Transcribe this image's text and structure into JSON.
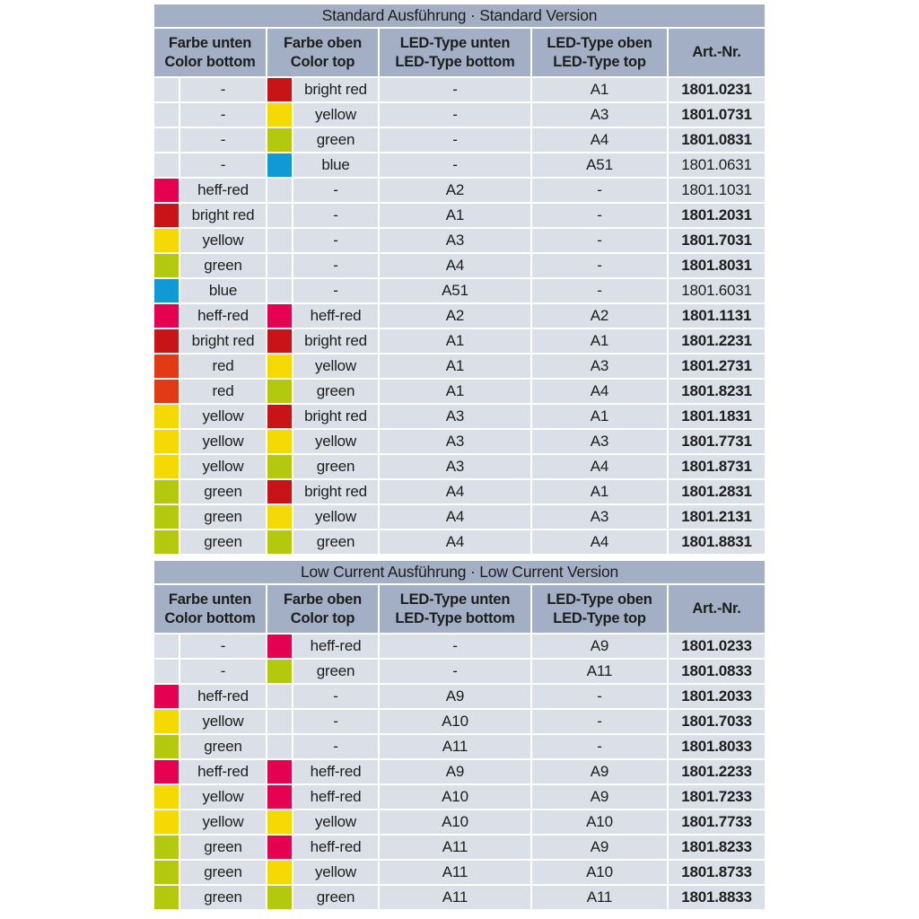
{
  "colors": {
    "header_bg": "#a3afc5",
    "row_bg": "#dbe0e8",
    "text": "#1d1d1b",
    "swatch": {
      "heff-red": "#e60050",
      "bright red": "#c81416",
      "red": "#e13a14",
      "yellow": "#f5d905",
      "green": "#b2c90d",
      "blue": "#0f9ad5"
    }
  },
  "columns": [
    {
      "de": "Farbe unten",
      "en": "Color bottom"
    },
    {
      "de": "Farbe oben",
      "en": "Color top"
    },
    {
      "de": "LED-Type unten",
      "en": "LED-Type bottom"
    },
    {
      "de": "LED-Type oben",
      "en": "LED-Type top"
    },
    {
      "de": "Art.-Nr."
    }
  ],
  "sections": [
    {
      "title": "Standard Ausführung · Standard Version",
      "rows": [
        {
          "color_bottom": "-",
          "color_top": "bright red",
          "led_bottom": "-",
          "led_top": "A1",
          "art_nr": "1801.0231",
          "bold": true
        },
        {
          "color_bottom": "-",
          "color_top": "yellow",
          "led_bottom": "-",
          "led_top": "A3",
          "art_nr": "1801.0731",
          "bold": true
        },
        {
          "color_bottom": "-",
          "color_top": "green",
          "led_bottom": "-",
          "led_top": "A4",
          "art_nr": "1801.0831",
          "bold": true
        },
        {
          "color_bottom": "-",
          "color_top": "blue",
          "led_bottom": "-",
          "led_top": "A51",
          "art_nr": "1801.0631",
          "bold": false
        },
        {
          "color_bottom": "heff-red",
          "color_top": "-",
          "led_bottom": "A2",
          "led_top": "-",
          "art_nr": "1801.1031",
          "bold": false
        },
        {
          "color_bottom": "bright red",
          "color_top": "-",
          "led_bottom": "A1",
          "led_top": "-",
          "art_nr": "1801.2031",
          "bold": true
        },
        {
          "color_bottom": "yellow",
          "color_top": "-",
          "led_bottom": "A3",
          "led_top": "-",
          "art_nr": "1801.7031",
          "bold": true
        },
        {
          "color_bottom": "green",
          "color_top": "-",
          "led_bottom": "A4",
          "led_top": "-",
          "art_nr": "1801.8031",
          "bold": true
        },
        {
          "color_bottom": "blue",
          "color_top": "-",
          "led_bottom": "A51",
          "led_top": "-",
          "art_nr": "1801.6031",
          "bold": false
        },
        {
          "color_bottom": "heff-red",
          "color_top": "heff-red",
          "led_bottom": "A2",
          "led_top": "A2",
          "art_nr": "1801.1131",
          "bold": true
        },
        {
          "color_bottom": "bright red",
          "color_top": "bright red",
          "led_bottom": "A1",
          "led_top": "A1",
          "art_nr": "1801.2231",
          "bold": true
        },
        {
          "color_bottom": "red",
          "color_top": "yellow",
          "led_bottom": "A1",
          "led_top": "A3",
          "art_nr": "1801.2731",
          "bold": true
        },
        {
          "color_bottom": "red",
          "color_top": "green",
          "led_bottom": "A1",
          "led_top": "A4",
          "art_nr": "1801.8231",
          "bold": true
        },
        {
          "color_bottom": "yellow",
          "color_top": "bright red",
          "led_bottom": "A3",
          "led_top": "A1",
          "art_nr": "1801.1831",
          "bold": true
        },
        {
          "color_bottom": "yellow",
          "color_top": "yellow",
          "led_bottom": "A3",
          "led_top": "A3",
          "art_nr": "1801.7731",
          "bold": true
        },
        {
          "color_bottom": "yellow",
          "color_top": "green",
          "led_bottom": "A3",
          "led_top": "A4",
          "art_nr": "1801.8731",
          "bold": true
        },
        {
          "color_bottom": "green",
          "color_top": "bright red",
          "led_bottom": "A4",
          "led_top": "A1",
          "art_nr": "1801.2831",
          "bold": true
        },
        {
          "color_bottom": "green",
          "color_top": "yellow",
          "led_bottom": "A4",
          "led_top": "A3",
          "art_nr": "1801.2131",
          "bold": true
        },
        {
          "color_bottom": "green",
          "color_top": "green",
          "led_bottom": "A4",
          "led_top": "A4",
          "art_nr": "1801.8831",
          "bold": true
        }
      ]
    },
    {
      "title": "Low Current Ausführung · Low Current Version",
      "rows": [
        {
          "color_bottom": "-",
          "color_top": "heff-red",
          "led_bottom": "-",
          "led_top": "A9",
          "art_nr": "1801.0233",
          "bold": true
        },
        {
          "color_bottom": "-",
          "color_top": "green",
          "led_bottom": "-",
          "led_top": "A11",
          "art_nr": "1801.0833",
          "bold": true
        },
        {
          "color_bottom": "heff-red",
          "color_top": "-",
          "led_bottom": "A9",
          "led_top": "-",
          "art_nr": "1801.2033",
          "bold": true
        },
        {
          "color_bottom": "yellow",
          "color_top": "-",
          "led_bottom": "A10",
          "led_top": "-",
          "art_nr": "1801.7033",
          "bold": true
        },
        {
          "color_bottom": "green",
          "color_top": "-",
          "led_bottom": "A11",
          "led_top": "-",
          "art_nr": "1801.8033",
          "bold": true
        },
        {
          "color_bottom": "heff-red",
          "color_top": "heff-red",
          "led_bottom": "A9",
          "led_top": "A9",
          "art_nr": "1801.2233",
          "bold": true
        },
        {
          "color_bottom": "yellow",
          "color_top": "heff-red",
          "led_bottom": "A10",
          "led_top": "A9",
          "art_nr": "1801.7233",
          "bold": true
        },
        {
          "color_bottom": "yellow",
          "color_top": "yellow",
          "led_bottom": "A10",
          "led_top": "A10",
          "art_nr": "1801.7733",
          "bold": true
        },
        {
          "color_bottom": "green",
          "color_top": "heff-red",
          "led_bottom": "A11",
          "led_top": "A9",
          "art_nr": "1801.8233",
          "bold": true
        },
        {
          "color_bottom": "green",
          "color_top": "yellow",
          "led_bottom": "A11",
          "led_top": "A10",
          "art_nr": "1801.8733",
          "bold": true
        },
        {
          "color_bottom": "green",
          "color_top": "green",
          "led_bottom": "A11",
          "led_top": "A11",
          "art_nr": "1801.8833",
          "bold": true
        }
      ]
    }
  ]
}
